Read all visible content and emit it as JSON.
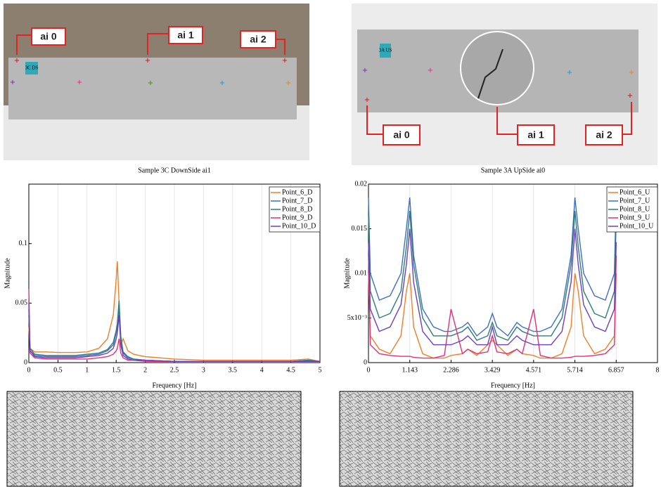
{
  "photos": [
    {
      "sticker": "3C DS",
      "labels": [
        "ai 0",
        "ai 1",
        "ai 2"
      ]
    },
    {
      "sticker": "3A US",
      "labels": [
        "ai 0",
        "ai 1",
        "ai 2"
      ]
    }
  ],
  "chart_data": [
    {
      "type": "line",
      "title": "Sample 3C DownSide ai1",
      "x_label": "Frequency [Hz]",
      "y_label": "Magnitude",
      "xlim": [
        0,
        5
      ],
      "xticks": [
        0,
        0.5,
        1,
        1.5,
        2,
        2.5,
        3,
        3.5,
        4,
        4.5,
        5
      ],
      "ylim": [
        0,
        0.15
      ],
      "yticks": [
        0,
        0.05,
        0.1
      ],
      "grid": true,
      "legend": "upper right",
      "x": [
        0,
        0.02,
        0.1,
        0.3,
        0.5,
        0.8,
        1.0,
        1.2,
        1.35,
        1.45,
        1.5,
        1.52,
        1.55,
        1.58,
        1.62,
        1.7,
        1.8,
        2.0,
        2.5,
        3.0,
        3.5,
        4.0,
        4.5,
        4.8,
        5.0
      ],
      "series": [
        {
          "name": "Point_6_D",
          "color": "#f07f2a",
          "values": [
            0.03,
            0.012,
            0.009,
            0.009,
            0.0085,
            0.0085,
            0.009,
            0.012,
            0.02,
            0.04,
            0.07,
            0.085,
            0.05,
            0.015,
            0.02,
            0.01,
            0.007,
            0.005,
            0.003,
            0.002,
            0.002,
            0.002,
            0.002,
            0.003,
            0.001
          ]
        },
        {
          "name": "Point_7_D",
          "color": "#3f6fbf",
          "values": [
            0.04,
            0.01,
            0.006,
            0.005,
            0.005,
            0.005,
            0.006,
            0.007,
            0.01,
            0.015,
            0.025,
            0.03,
            0.048,
            0.02,
            0.008,
            0.004,
            0.003,
            0.002,
            0.001,
            0.001,
            0.001,
            0.001,
            0.001,
            0.002,
            0.001
          ]
        },
        {
          "name": "Point_8_D",
          "color": "#2e7b7b",
          "values": [
            0.045,
            0.012,
            0.007,
            0.006,
            0.006,
            0.006,
            0.007,
            0.008,
            0.011,
            0.017,
            0.027,
            0.033,
            0.052,
            0.022,
            0.009,
            0.005,
            0.003,
            0.002,
            0.001,
            0.001,
            0.001,
            0.001,
            0.001,
            0.002,
            0.001
          ]
        },
        {
          "name": "Point_9_D",
          "color": "#e0307a",
          "values": [
            0.062,
            0.008,
            0.004,
            0.003,
            0.003,
            0.003,
            0.003,
            0.004,
            0.005,
            0.007,
            0.01,
            0.012,
            0.02,
            0.008,
            0.004,
            0.002,
            0.002,
            0.001,
            0.001,
            0.001,
            0.001,
            0.001,
            0.001,
            0.001,
            0.001
          ]
        },
        {
          "name": "Point_10_D",
          "color": "#6a3fbf",
          "values": [
            0.05,
            0.01,
            0.005,
            0.004,
            0.004,
            0.004,
            0.005,
            0.006,
            0.008,
            0.012,
            0.02,
            0.025,
            0.04,
            0.015,
            0.006,
            0.003,
            0.002,
            0.002,
            0.001,
            0.001,
            0.001,
            0.001,
            0.001,
            0.001,
            0.001
          ]
        }
      ]
    },
    {
      "type": "line",
      "title": "Sample 3A UpSide ai0",
      "x_label": "Frequency [Hz]",
      "y_label": "Magnitude",
      "xlim": [
        0,
        8
      ],
      "xticks": [
        0,
        1.143,
        2.286,
        3.429,
        4.571,
        5.714,
        6.857,
        8
      ],
      "ylim": [
        0,
        0.02
      ],
      "yticks": [
        0,
        {
          "value": 0.005,
          "label": "5x10⁻³"
        },
        0.01,
        0.015,
        0.02
      ],
      "grid": true,
      "legend": "upper right",
      "x": [
        0,
        0.05,
        0.3,
        0.6,
        0.9,
        1.05,
        1.143,
        1.25,
        1.5,
        1.8,
        2.1,
        2.286,
        2.6,
        2.75,
        3.0,
        3.3,
        3.429,
        3.557,
        3.857,
        4.107,
        4.257,
        4.571,
        4.757,
        5.057,
        5.357,
        5.607,
        5.714,
        5.807,
        5.957,
        6.257,
        6.557,
        6.807,
        6.857
      ],
      "series": [
        {
          "name": "Point_6_U",
          "color": "#f07f2a",
          "values": [
            0.01,
            0.003,
            0.0015,
            0.001,
            0.003,
            0.008,
            0.01,
            0.004,
            0.001,
            0.0005,
            0.0005,
            0.0008,
            0.001,
            0.0015,
            0.0008,
            0.002,
            0.0025,
            0.002,
            0.0008,
            0.0015,
            0.001,
            0.0008,
            0.0005,
            0.0005,
            0.001,
            0.004,
            0.01,
            0.008,
            0.003,
            0.001,
            0.0015,
            0.003,
            0.01
          ]
        },
        {
          "name": "Point_7_U",
          "color": "#3f6fbf",
          "values": [
            0.0185,
            0.01,
            0.007,
            0.0075,
            0.01,
            0.015,
            0.0185,
            0.012,
            0.006,
            0.004,
            0.0035,
            0.0035,
            0.004,
            0.0045,
            0.003,
            0.004,
            0.0055,
            0.004,
            0.003,
            0.0045,
            0.004,
            0.0035,
            0.0035,
            0.004,
            0.006,
            0.012,
            0.0185,
            0.015,
            0.01,
            0.0075,
            0.007,
            0.01,
            0.0185
          ]
        },
        {
          "name": "Point_8_U",
          "color": "#2e7b7b",
          "values": [
            0.0165,
            0.008,
            0.005,
            0.0055,
            0.008,
            0.013,
            0.017,
            0.011,
            0.005,
            0.003,
            0.003,
            0.003,
            0.0035,
            0.004,
            0.0025,
            0.003,
            0.0045,
            0.003,
            0.0025,
            0.004,
            0.0035,
            0.003,
            0.003,
            0.003,
            0.005,
            0.011,
            0.017,
            0.013,
            0.008,
            0.0055,
            0.005,
            0.008,
            0.0165
          ]
        },
        {
          "name": "Point_9_U",
          "color": "#e0307a",
          "values": [
            0.012,
            0.002,
            0.001,
            0.0008,
            0.0007,
            0.0007,
            0.0007,
            0.0006,
            0.0005,
            0.0005,
            0.0008,
            0.006,
            0.001,
            0.0015,
            0.001,
            0.0012,
            0.003,
            0.0012,
            0.001,
            0.0015,
            0.001,
            0.006,
            0.0008,
            0.0005,
            0.0005,
            0.0006,
            0.0007,
            0.0007,
            0.0007,
            0.0008,
            0.001,
            0.002,
            0.012
          ]
        },
        {
          "name": "Point_10_U",
          "color": "#6a3fbf",
          "values": [
            0.0135,
            0.006,
            0.0035,
            0.004,
            0.0065,
            0.011,
            0.015,
            0.009,
            0.0035,
            0.002,
            0.002,
            0.002,
            0.0025,
            0.003,
            0.002,
            0.002,
            0.004,
            0.002,
            0.002,
            0.003,
            0.0025,
            0.002,
            0.002,
            0.002,
            0.0035,
            0.009,
            0.015,
            0.011,
            0.0065,
            0.004,
            0.0035,
            0.006,
            0.0135
          ]
        }
      ]
    }
  ]
}
